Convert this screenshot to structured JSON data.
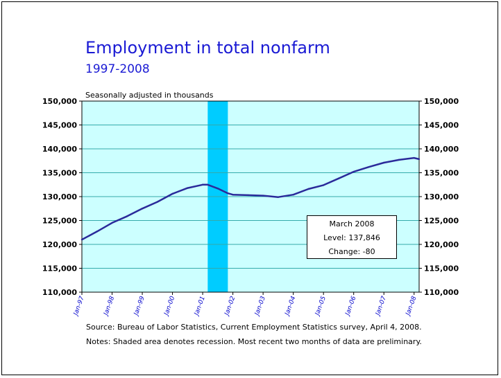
{
  "colors": {
    "title": "#1a1ad4",
    "plot_background": "#ccffff",
    "gridline": "#33aaaa",
    "recession": "#00ccff",
    "line": "#2a2a9a",
    "axis_tick_label": "#0000cc"
  },
  "texts": {
    "unit_note": "Seasonally adjusted in thousands",
    "source": "Source:  Bureau of Labor Statistics, Current Employment Statistics survey, April 4, 2008.",
    "notes": "Notes:  Shaded area denotes recession.  Most recent two months of data are preliminary."
  },
  "callout": {
    "line1": "March 2008",
    "line2": "Level: 137,846",
    "line3": "Change: -80"
  },
  "chart_data": {
    "type": "line",
    "title": "Employment in total nonfarm",
    "subtitle": "1997-2008",
    "ylim": [
      110000,
      150000
    ],
    "y_ticks": [
      "110,000",
      "115,000",
      "120,000",
      "125,000",
      "130,000",
      "135,000",
      "140,000",
      "145,000",
      "150,000"
    ],
    "x_ticks": [
      "Jan-97",
      "Jan-98",
      "Jan-99",
      "Jan-00",
      "Jan-01",
      "Jan-02",
      "Jan-03",
      "Jan-04",
      "Jan-05",
      "Jan-06",
      "Jan-07",
      "Jan-08"
    ],
    "grid": true,
    "recession": {
      "start": "2001-03",
      "end": "2001-11"
    },
    "series": [
      {
        "x": [
          "1997-01",
          "1997-07",
          "1998-01",
          "1998-07",
          "1999-01",
          "1999-07",
          "2000-01",
          "2000-07",
          "2001-01",
          "2001-03",
          "2001-07",
          "2001-11",
          "2002-01",
          "2002-07",
          "2003-01",
          "2003-07",
          "2004-01",
          "2004-07",
          "2005-01",
          "2005-07",
          "2006-01",
          "2006-07",
          "2007-01",
          "2007-07",
          "2008-01",
          "2008-03"
        ],
        "values": [
          121000,
          122700,
          124500,
          125900,
          127500,
          128900,
          130600,
          131800,
          132500,
          132500,
          131700,
          130700,
          130400,
          130300,
          130200,
          129900,
          130400,
          131600,
          132400,
          133800,
          135200,
          136200,
          137100,
          137700,
          138100,
          137846
        ]
      }
    ]
  }
}
